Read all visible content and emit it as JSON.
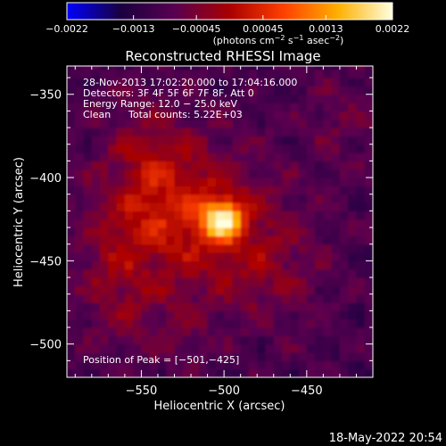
{
  "chart_data": {
    "type": "heatmap",
    "title": "Reconstructed RHESSI Image",
    "xlabel": "Heliocentric X (arcsec)",
    "ylabel": "Heliocentric Y (arcsec)",
    "xlim": [
      -595,
      -410
    ],
    "ylim": [
      -520,
      -333
    ],
    "x_ticks": [
      -550,
      -500,
      -450
    ],
    "x_tick_labels": [
      "−550",
      "−500",
      "−450"
    ],
    "y_ticks": [
      -350,
      -400,
      -450,
      -500
    ],
    "y_tick_labels": [
      "−350",
      "−400",
      "−450",
      "−500"
    ],
    "colorbar": {
      "range": [
        -0.0022,
        0.0022
      ],
      "ticks": [
        -0.0022,
        -0.0013,
        -0.00045,
        0.00045,
        0.0013,
        0.0022
      ],
      "tick_labels": [
        "−0.0022",
        "−0.0013",
        "−0.00045",
        "0.00045",
        "0.0013",
        "0.0022"
      ],
      "units_main": "(photons cm",
      "units_exp1": "−2",
      "units_mid1": " s",
      "units_exp2": "−1",
      "units_mid2": " asec",
      "units_exp3": "−2",
      "units_end": ")",
      "colors": [
        "#0000ff",
        "#1a0040",
        "#5a0050",
        "#aa0000",
        "#ff4000",
        "#ffb000",
        "#ffffe0"
      ]
    },
    "annotations": {
      "time_range": "28-Nov-2013 17:02:20.000 to 17:04:16.000",
      "detectors": "Detectors: 3F 4F 5F 6F 7F 8F, Att 0",
      "energy_range": "Energy Range: 12.0 − 25.0 keV",
      "algorithm": "Clean",
      "total_counts": "Total counts: 5.22E+03",
      "peak_position": "Position of Peak = [−501,−425]"
    },
    "peak": {
      "x": -501,
      "y": -425
    }
  },
  "footer": {
    "timestamp": "18-May-2022 20:54"
  }
}
